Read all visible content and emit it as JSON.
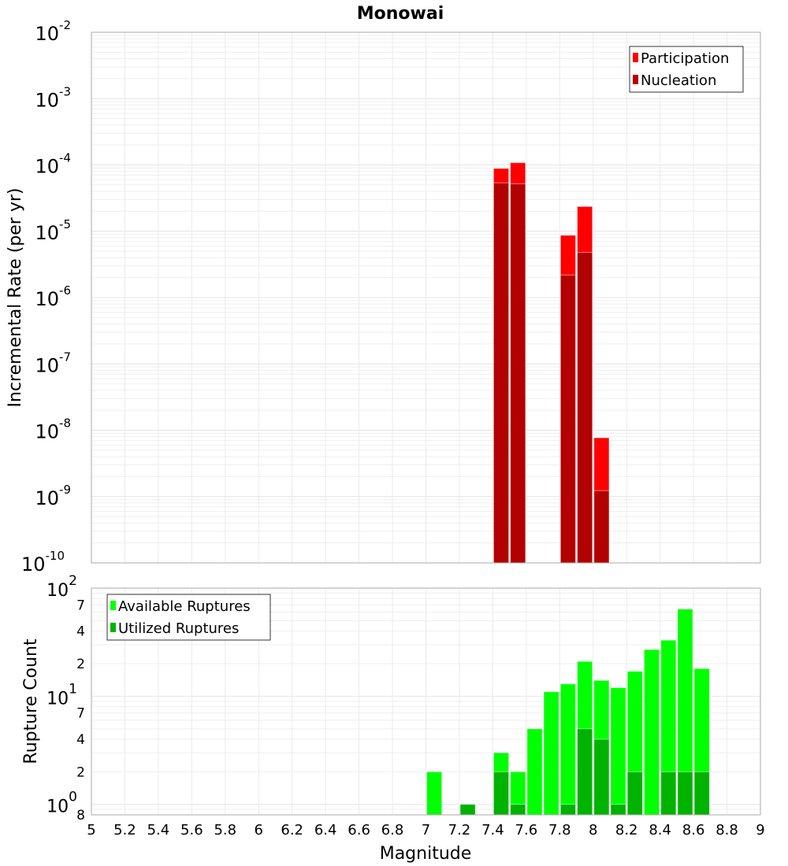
{
  "chart_data": [
    {
      "type": "bar",
      "title": "Monowai",
      "xlabel": "Magnitude",
      "ylabel": "Incremental Rate (per yr)",
      "yscale": "log",
      "ylim": [
        1e-10,
        0.01
      ],
      "xlim": [
        5,
        9
      ],
      "bin_width": 0.1,
      "y_ticks": [
        {
          "base": "10",
          "exp": "-2",
          "value": 0.01
        },
        {
          "base": "10",
          "exp": "-3",
          "value": 0.001
        },
        {
          "base": "10",
          "exp": "-4",
          "value": 0.0001
        },
        {
          "base": "10",
          "exp": "-5",
          "value": 1e-05
        },
        {
          "base": "10",
          "exp": "-6",
          "value": 1e-06
        },
        {
          "base": "10",
          "exp": "-7",
          "value": 1e-07
        },
        {
          "base": "10",
          "exp": "-8",
          "value": 1e-08
        },
        {
          "base": "10",
          "exp": "-9",
          "value": 1e-09
        },
        {
          "base": "10",
          "exp": "-10",
          "value": 1e-10
        }
      ],
      "x": [
        7.45,
        7.55,
        7.85,
        7.95,
        8.05
      ],
      "series": [
        {
          "name": "Participation",
          "color": "#ff0000",
          "values": [
            8.85e-05,
            0.000108,
            8.7e-06,
            2.36e-05,
            7.7e-09
          ]
        },
        {
          "name": "Nucleation",
          "color": "#b30000",
          "values": [
            5.37e-05,
            5.2e-05,
            2.19e-06,
            4.8e-06,
            1.23e-09
          ]
        }
      ],
      "legend": "top-right",
      "grid": true
    },
    {
      "type": "bar",
      "xlabel": "Magnitude",
      "ylabel": "Rupture Count",
      "yscale": "log",
      "ylim": [
        0.8,
        100
      ],
      "xlim": [
        5,
        9
      ],
      "bin_width": 0.1,
      "x_ticks": [
        "5",
        "5.2",
        "5.4",
        "5.6",
        "5.8",
        "6",
        "6.2",
        "6.4",
        "6.6",
        "6.8",
        "7",
        "7.2",
        "7.4",
        "7.6",
        "7.8",
        "8",
        "8.2",
        "8.4",
        "8.6",
        "8.8",
        "9"
      ],
      "y_ticks": [
        {
          "base": "10",
          "exp": "2",
          "value": 100
        },
        {
          "base": "",
          "exp": "",
          "label": "7",
          "value": 70
        },
        {
          "base": "",
          "exp": "",
          "label": "4",
          "value": 40
        },
        {
          "base": "",
          "exp": "",
          "label": "2",
          "value": 20
        },
        {
          "base": "10",
          "exp": "1",
          "value": 10
        },
        {
          "base": "",
          "exp": "",
          "label": "7",
          "value": 7
        },
        {
          "base": "",
          "exp": "",
          "label": "4",
          "value": 4
        },
        {
          "base": "",
          "exp": "",
          "label": "2",
          "value": 2
        },
        {
          "base": "10",
          "exp": "0",
          "value": 1
        },
        {
          "base": "",
          "exp": "",
          "label": "8",
          "value": 0.8
        }
      ],
      "x": [
        7.05,
        7.25,
        7.45,
        7.55,
        7.65,
        7.75,
        7.85,
        7.95,
        8.05,
        8.15,
        8.25,
        8.35,
        8.45,
        8.55,
        8.65
      ],
      "series": [
        {
          "name": "Available Ruptures",
          "color": "#00ff00",
          "values": [
            2,
            1,
            3,
            2,
            5,
            11,
            13,
            21,
            14,
            12,
            17,
            27,
            33,
            64,
            18
          ]
        },
        {
          "name": "Utilized Ruptures",
          "color": "#00b300",
          "values": [
            0,
            1,
            2,
            1,
            0,
            0,
            1,
            5,
            4,
            1,
            2,
            0,
            2,
            2,
            2
          ]
        }
      ],
      "legend": "top-left",
      "grid": true
    }
  ]
}
